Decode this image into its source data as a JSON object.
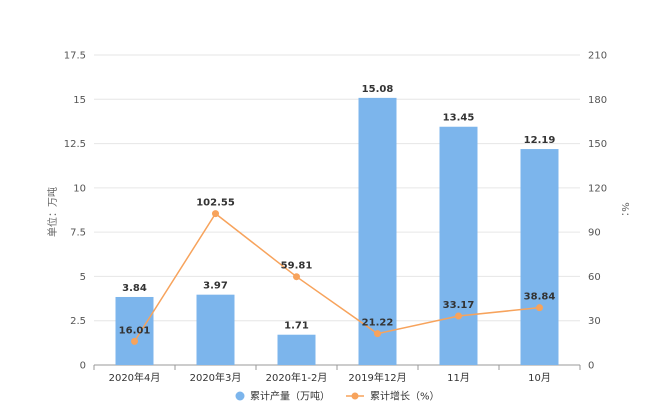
{
  "chart_data": {
    "type": "bar",
    "categories": [
      "2020年4月",
      "2020年3月",
      "2020年1-2月",
      "2019年12月",
      "11月",
      "10月"
    ],
    "series": [
      {
        "name": "累计产量（万吨）",
        "type": "bar",
        "axis": "left",
        "color": "#7cb5ec",
        "values": [
          3.84,
          3.97,
          1.71,
          15.08,
          13.45,
          12.19
        ],
        "labels": [
          "3.84",
          "3.97",
          "1.71",
          "15.08",
          "13.45",
          "12.19"
        ]
      },
      {
        "name": "累计增长（%）",
        "type": "line",
        "axis": "right",
        "color": "#f7a35c",
        "values": [
          16.01,
          102.55,
          59.81,
          21.22,
          33.17,
          38.84
        ],
        "labels": [
          "16.01",
          "102.55",
          "59.81",
          "21.22",
          "33.17",
          "38.84"
        ]
      }
    ],
    "y_left": {
      "label": "单位：万吨",
      "range": [
        0,
        17.5
      ],
      "ticks": [
        "0",
        "2.5",
        "5",
        "7.5",
        "10",
        "12.5",
        "15",
        "17.5"
      ]
    },
    "y_right": {
      "label": "%：",
      "range": [
        0,
        210
      ],
      "ticks": [
        "0",
        "30",
        "60",
        "90",
        "120",
        "150",
        "180",
        "210"
      ]
    },
    "grid": true,
    "legend_position": "bottom-center"
  }
}
